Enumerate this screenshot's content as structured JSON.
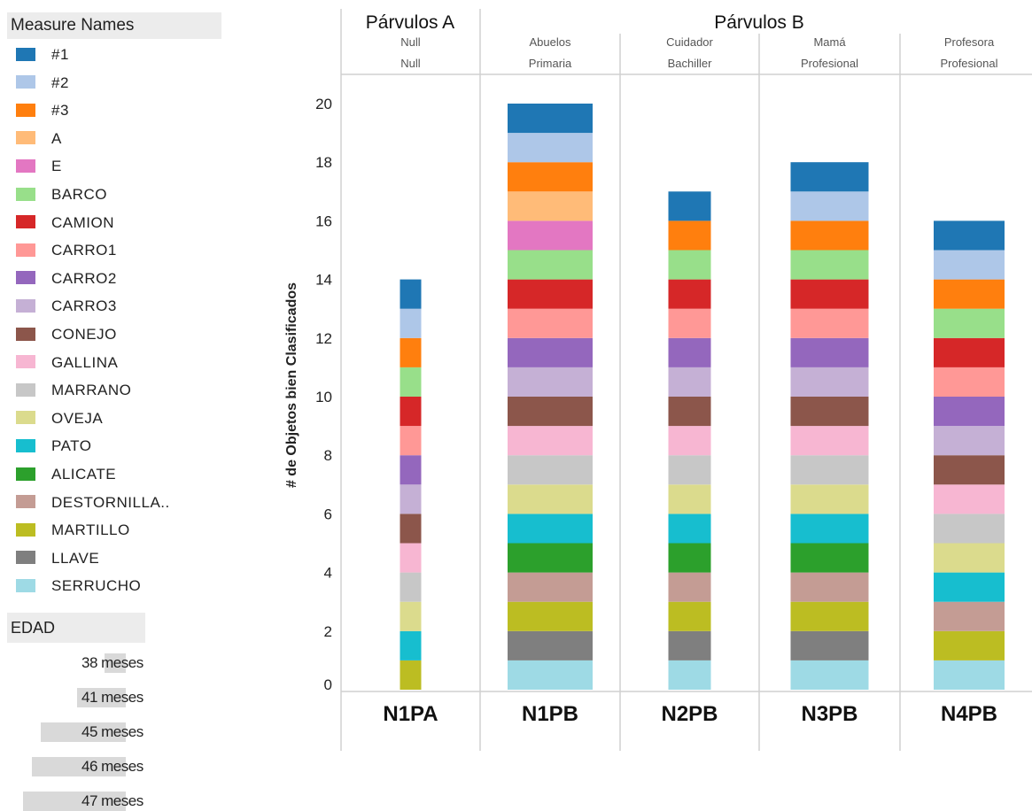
{
  "legend": {
    "title": "Measure Names",
    "items": [
      {
        "label": "#1",
        "color": "#1f77b4"
      },
      {
        "label": "#2",
        "color": "#aec7e8"
      },
      {
        "label": "#3",
        "color": "#ff7f0e"
      },
      {
        "label": "A",
        "color": "#ffbb78"
      },
      {
        "label": "E",
        "color": "#e377c2"
      },
      {
        "label": "BARCO",
        "color": "#98df8a"
      },
      {
        "label": "CAMION",
        "color": "#d62728"
      },
      {
        "label": "CARRO1",
        "color": "#ff9896"
      },
      {
        "label": "CARRO2",
        "color": "#9467bd"
      },
      {
        "label": "CARRO3",
        "color": "#c5b0d5"
      },
      {
        "label": "CONEJO",
        "color": "#8c564b"
      },
      {
        "label": "GALLINA",
        "color": "#f7b6d2"
      },
      {
        "label": "MARRANO",
        "color": "#c7c7c7"
      },
      {
        "label": "OVEJA",
        "color": "#dbdb8d"
      },
      {
        "label": "PATO",
        "color": "#17becf"
      },
      {
        "label": "ALICATE",
        "color": "#2ca02c"
      },
      {
        "label": "DESTORNILLA..",
        "color": "#c49c94"
      },
      {
        "label": "MARTILLO",
        "color": "#bcbd22"
      },
      {
        "label": "LLAVE",
        "color": "#7f7f7f"
      },
      {
        "label": "SERRUCHO",
        "color": "#9edae5"
      }
    ]
  },
  "edad": {
    "title": "EDAD",
    "items": [
      {
        "label": "38 meses",
        "value": 38
      },
      {
        "label": "41 meses",
        "value": 41
      },
      {
        "label": "45 meses",
        "value": 45
      },
      {
        "label": "46 meses",
        "value": 46
      },
      {
        "label": "47 meses",
        "value": 47
      }
    ]
  },
  "chart_data": {
    "type": "bar",
    "stacked": true,
    "title": "",
    "ylabel": "# de Objetos bien Clasificados",
    "xlabel": "",
    "ylim": [
      0,
      21
    ],
    "yticks": [
      0,
      2,
      4,
      6,
      8,
      10,
      12,
      14,
      16,
      18,
      20
    ],
    "groups": [
      {
        "label": "Párvulos A",
        "columns": [
          0
        ]
      },
      {
        "label": "Párvulos B",
        "columns": [
          1,
          2,
          3,
          4
        ]
      }
    ],
    "categories": [
      {
        "name": "N1PA",
        "sub1": "Null",
        "sub2": "Null",
        "edad": "38 meses",
        "segments": [
          "MARTILLO",
          "PATO",
          "OVEJA",
          "MARRANO",
          "GALLINA",
          "CONEJO",
          "CARRO3",
          "CARRO2",
          "CARRO1",
          "CAMION",
          "BARCO",
          "#3",
          "#2",
          "#1"
        ]
      },
      {
        "name": "N1PB",
        "sub1": "Abuelos",
        "sub2": "Primaria",
        "edad": "47 meses",
        "segments": [
          "SERRUCHO",
          "LLAVE",
          "MARTILLO",
          "DESTORNILLA..",
          "ALICATE",
          "PATO",
          "OVEJA",
          "MARRANO",
          "GALLINA",
          "CONEJO",
          "CARRO3",
          "CARRO2",
          "CARRO1",
          "CAMION",
          "BARCO",
          "E",
          "A",
          "#3",
          "#2",
          "#1"
        ]
      },
      {
        "name": "N2PB",
        "sub1": "Cuidador",
        "sub2": "Bachiller",
        "edad": "41 meses",
        "segments": [
          "SERRUCHO",
          "LLAVE",
          "MARTILLO",
          "DESTORNILLA..",
          "ALICATE",
          "PATO",
          "OVEJA",
          "MARRANO",
          "GALLINA",
          "CONEJO",
          "CARRO3",
          "CARRO2",
          "CARRO1",
          "CAMION",
          "BARCO",
          "#3",
          "#1"
        ]
      },
      {
        "name": "N3PB",
        "sub1": "Mamá",
        "sub2": "Profesional",
        "edad": "46 meses",
        "segments": [
          "SERRUCHO",
          "LLAVE",
          "MARTILLO",
          "DESTORNILLA..",
          "ALICATE",
          "PATO",
          "OVEJA",
          "MARRANO",
          "GALLINA",
          "CONEJO",
          "CARRO3",
          "CARRO2",
          "CARRO1",
          "CAMION",
          "BARCO",
          "#3",
          "#2",
          "#1"
        ]
      },
      {
        "name": "N4PB",
        "sub1": "Profesora",
        "sub2": "Profesional",
        "edad": "45 meses",
        "segments": [
          "SERRUCHO",
          "MARTILLO",
          "DESTORNILLA..",
          "PATO",
          "OVEJA",
          "MARRANO",
          "GALLINA",
          "CONEJO",
          "CARRO3",
          "CARRO2",
          "CARRO1",
          "CAMION",
          "BARCO",
          "#3",
          "#2",
          "#1"
        ]
      }
    ],
    "totals": [
      14,
      20,
      17,
      18,
      16
    ],
    "segment_value": 1
  }
}
